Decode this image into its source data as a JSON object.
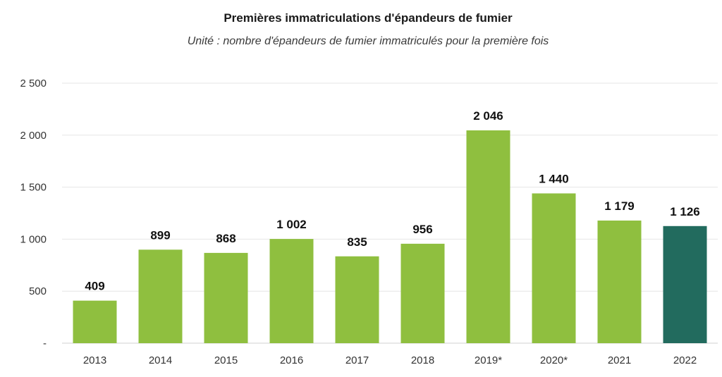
{
  "chart_data": {
    "type": "bar",
    "title": "Premières immatriculations d'épandeurs de fumier",
    "subtitle": "Unité : nombre d'épandeurs de fumier immatriculés pour la première fois",
    "categories": [
      "2013",
      "2014",
      "2015",
      "2016",
      "2017",
      "2018",
      "2019*",
      "2020*",
      "2021",
      "2022"
    ],
    "values": [
      409,
      899,
      868,
      1002,
      835,
      956,
      2046,
      1440,
      1179,
      1126
    ],
    "value_labels": [
      "409",
      "899",
      "868",
      "1 002",
      "835",
      "956",
      "2 046",
      "1 440",
      "1 179",
      "1 126"
    ],
    "yticks": [
      0,
      500,
      1000,
      1500,
      2000,
      2500
    ],
    "ytick_labels": [
      "-",
      "500",
      "1 000",
      "1 500",
      "2 000",
      "2 500"
    ],
    "ylim": [
      0,
      2500
    ],
    "grid": true,
    "colors": {
      "default": "#8fbf3f",
      "highlight": "#226b5e"
    },
    "highlight_index": 9
  }
}
